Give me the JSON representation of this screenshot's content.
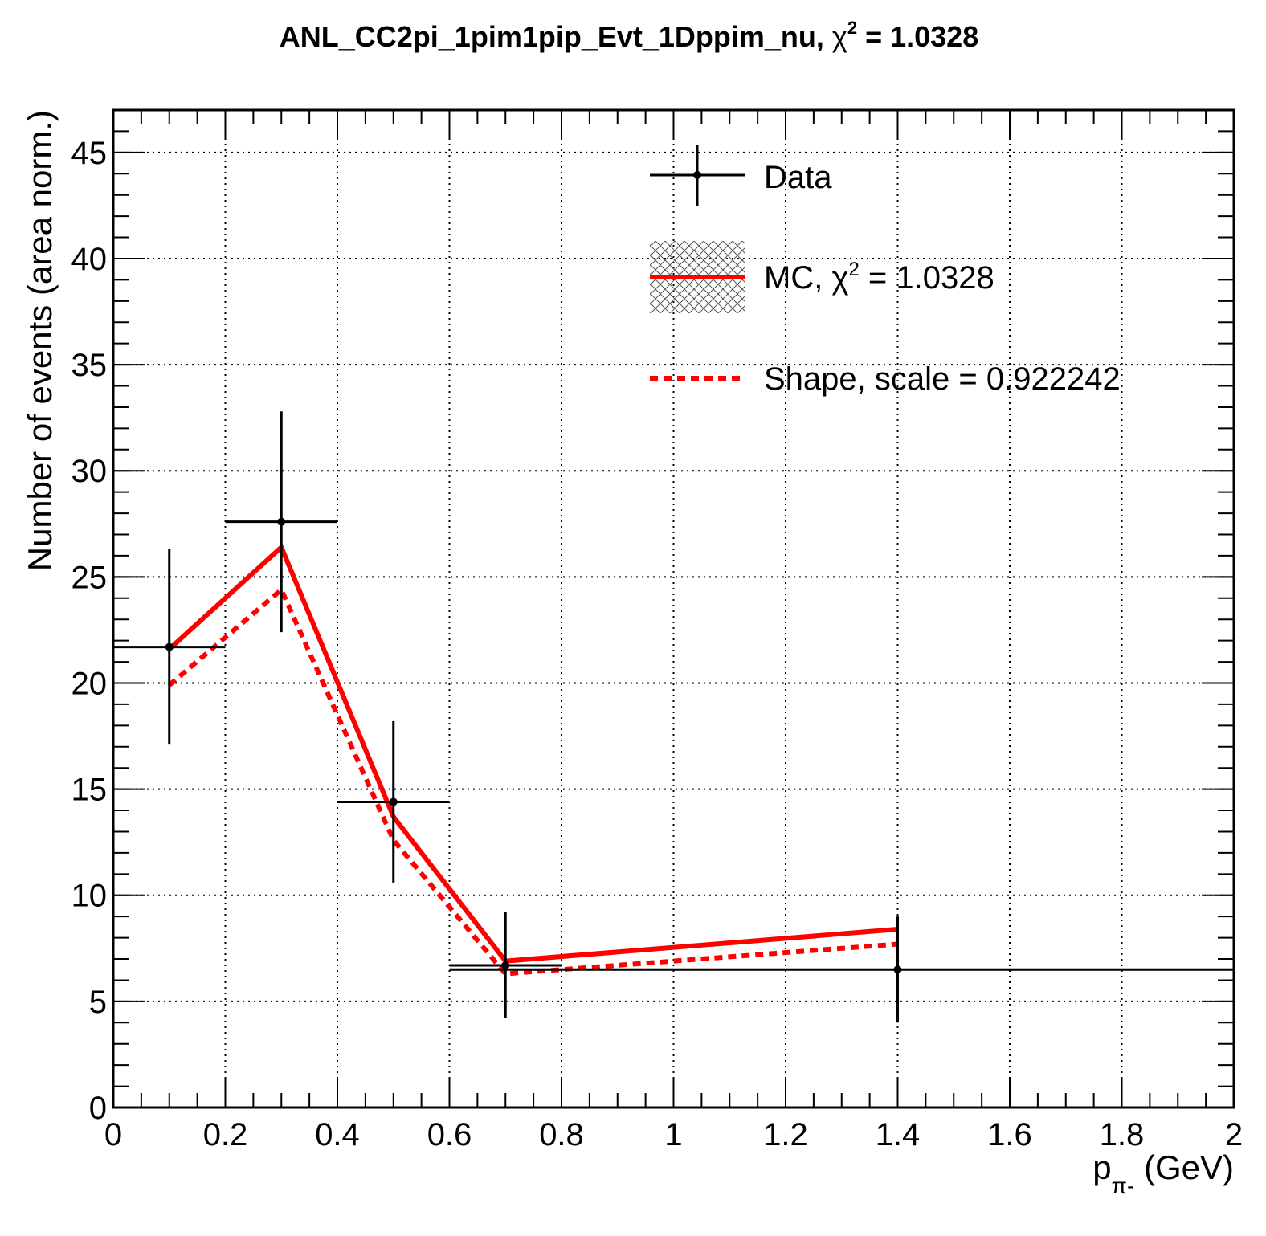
{
  "title": {
    "prefix": "ANL_CC2pi_1pim1pip_Evt_1Dppim_nu, ",
    "chi": "χ",
    "sup": "2",
    "suffix": " = 1.0328"
  },
  "axes": {
    "xlabel_main": "p",
    "xlabel_sub": "π-",
    "xlabel_unit": " (GeV)",
    "ylabel": "Number of events (area norm.)",
    "x_ticks": [
      "0",
      "0.2",
      "0.4",
      "0.6",
      "0.8",
      "1",
      "1.2",
      "1.4",
      "1.6",
      "1.8",
      "2"
    ],
    "y_ticks": [
      "0",
      "5",
      "10",
      "15",
      "20",
      "25",
      "30",
      "35",
      "40",
      "45"
    ]
  },
  "legend": {
    "data_label": "Data",
    "mc_prefix": "MC, ",
    "mc_chi": "χ",
    "mc_sup": "2",
    "mc_suffix": " = 1.0328",
    "shape_label": "Shape, scale = 0.922242"
  },
  "colors": {
    "data": "#000000",
    "mc": "#ff0000",
    "shape": "#ff0000"
  },
  "chart_data": {
    "type": "line",
    "xlim": [
      0,
      2
    ],
    "ylim": [
      0,
      47
    ],
    "grid": true,
    "legend_position": "top-right",
    "series": [
      {
        "name": "Data",
        "kind": "errorbar",
        "x": [
          0.1,
          0.3,
          0.5,
          0.7,
          1.4
        ],
        "xlow": [
          0.0,
          0.2,
          0.4,
          0.6,
          0.6
        ],
        "xhigh": [
          0.2,
          0.4,
          0.6,
          0.8,
          2.0
        ],
        "y": [
          21.7,
          27.6,
          14.4,
          6.7,
          6.5
        ],
        "yerr": [
          4.6,
          5.2,
          3.8,
          2.5,
          2.5
        ]
      },
      {
        "name": "MC, χ2 = 1.0328",
        "kind": "line",
        "x": [
          0.1,
          0.3,
          0.5,
          0.7,
          1.4
        ],
        "y": [
          21.6,
          26.4,
          13.7,
          6.9,
          8.4
        ]
      },
      {
        "name": "Shape, scale = 0.922242",
        "kind": "dashed",
        "x": [
          0.1,
          0.3,
          0.5,
          0.7,
          1.4
        ],
        "y": [
          19.9,
          24.4,
          12.6,
          6.3,
          7.7
        ]
      }
    ]
  }
}
